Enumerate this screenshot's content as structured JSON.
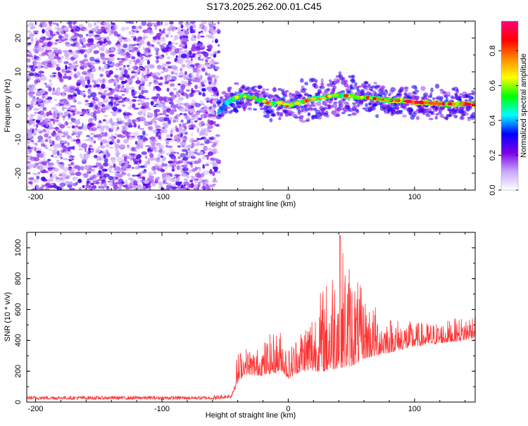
{
  "title": "S173.2025.262.00.01.C45",
  "chart_data": [
    {
      "type": "heatmap",
      "name": "spectrogram",
      "xlabel": "Height of straight line (km)",
      "ylabel": "Frequency (Hz)",
      "xlim": [
        -207,
        148
      ],
      "ylim": [
        -25,
        25
      ],
      "xticks": [
        -200,
        -100,
        0,
        100
      ],
      "xtick_labels": [
        "-200",
        "-100",
        "0",
        "100"
      ],
      "yticks": [
        -20,
        -10,
        0,
        10,
        20
      ],
      "ytick_labels": [
        "-20",
        "-10",
        "0",
        "10",
        "20"
      ],
      "noise_region_x": [
        -207,
        -55
      ],
      "signal_trace": {
        "x": [
          -55,
          -50,
          -45,
          -40,
          -35,
          -30,
          -25,
          -20,
          -15,
          -10,
          -5,
          0,
          5,
          10,
          15,
          20,
          25,
          30,
          35,
          40,
          45,
          50,
          55,
          60,
          70,
          80,
          90,
          100,
          110,
          120,
          130,
          140,
          148
        ],
        "y": [
          -2,
          0.5,
          2,
          2.5,
          2.8,
          2.5,
          2,
          1.5,
          0.5,
          0.5,
          1,
          0,
          0.5,
          1,
          1.5,
          2,
          2,
          2.5,
          3,
          3.2,
          3,
          2.8,
          2.5,
          2.5,
          2,
          1.5,
          1.5,
          1,
          0.8,
          0.5,
          0.5,
          0.5,
          0.3
        ]
      },
      "colorbar": {
        "label": "Normalized spectral amplitude",
        "range": [
          0,
          0.97
        ],
        "ticks": [
          0.0,
          0.2,
          0.4,
          0.6,
          0.8
        ],
        "tick_labels": [
          "0.0",
          "0.2",
          "0.4",
          "0.6",
          "0.8"
        ],
        "colors": [
          "#ffffff",
          "#c8a6ff",
          "#7a00e6",
          "#0000ff",
          "#00ffff",
          "#00ff00",
          "#ffff00",
          "#ff8800",
          "#ff0000",
          "#ff0080"
        ]
      }
    },
    {
      "type": "line",
      "name": "snr",
      "xlabel": "Height of straight line (km)",
      "ylabel": "SNR (10 * v/v)",
      "xlim": [
        -207,
        148
      ],
      "ylim": [
        0,
        1100
      ],
      "xticks": [
        -200,
        -100,
        0,
        100
      ],
      "xtick_labels": [
        "-200",
        "-100",
        "0",
        "100"
      ],
      "yticks": [
        0,
        200,
        400,
        600,
        800,
        1000
      ],
      "ytick_labels": [
        "0",
        "200",
        "400",
        "600",
        "800",
        "1000"
      ],
      "color": "#ff3333",
      "envelope": {
        "x": [
          -207,
          -60,
          -45,
          -40,
          -35,
          -25,
          -15,
          -5,
          0,
          10,
          20,
          30,
          40,
          50,
          60,
          70,
          80,
          100,
          120,
          140,
          148
        ],
        "baseline": [
          15,
          15,
          30,
          120,
          180,
          170,
          180,
          200,
          150,
          200,
          200,
          200,
          220,
          230,
          280,
          300,
          320,
          360,
          380,
          400,
          420
        ],
        "peak": [
          45,
          45,
          60,
          330,
          360,
          350,
          440,
          480,
          350,
          500,
          650,
          800,
          1080,
          900,
          700,
          620,
          560,
          520,
          520,
          560,
          600
        ]
      }
    }
  ]
}
